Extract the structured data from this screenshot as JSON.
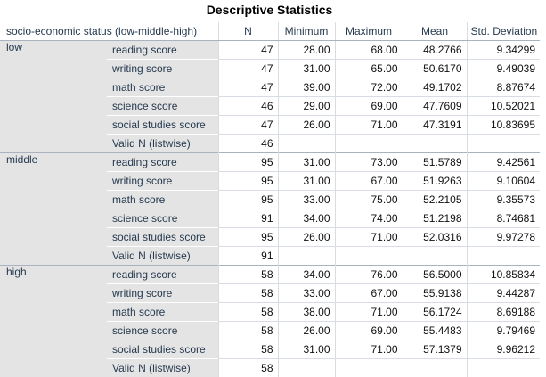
{
  "title": "Descriptive Statistics",
  "headers": {
    "group": "socio-economic status (low-middle-high)",
    "n": "N",
    "minimum": "Minimum",
    "maximum": "Maximum",
    "mean": "Mean",
    "std": "Std. Deviation"
  },
  "groups": [
    {
      "label": "low",
      "rows": [
        {
          "var": "reading score",
          "n": "47",
          "min": "28.00",
          "max": "68.00",
          "mean": "48.2766",
          "std": "9.34299"
        },
        {
          "var": "writing score",
          "n": "47",
          "min": "31.00",
          "max": "65.00",
          "mean": "50.6170",
          "std": "9.49039"
        },
        {
          "var": "math score",
          "n": "47",
          "min": "39.00",
          "max": "72.00",
          "mean": "49.1702",
          "std": "8.87674"
        },
        {
          "var": "science score",
          "n": "46",
          "min": "29.00",
          "max": "69.00",
          "mean": "47.7609",
          "std": "10.52021"
        },
        {
          "var": "social studies score",
          "n": "47",
          "min": "26.00",
          "max": "71.00",
          "mean": "47.3191",
          "std": "10.83695"
        },
        {
          "var": "Valid N (listwise)",
          "n": "46",
          "min": "",
          "max": "",
          "mean": "",
          "std": ""
        }
      ]
    },
    {
      "label": "middle",
      "rows": [
        {
          "var": "reading score",
          "n": "95",
          "min": "31.00",
          "max": "73.00",
          "mean": "51.5789",
          "std": "9.42561"
        },
        {
          "var": "writing score",
          "n": "95",
          "min": "31.00",
          "max": "67.00",
          "mean": "51.9263",
          "std": "9.10604"
        },
        {
          "var": "math score",
          "n": "95",
          "min": "33.00",
          "max": "75.00",
          "mean": "52.2105",
          "std": "9.35573"
        },
        {
          "var": "science score",
          "n": "91",
          "min": "34.00",
          "max": "74.00",
          "mean": "51.2198",
          "std": "8.74681"
        },
        {
          "var": "social studies score",
          "n": "95",
          "min": "26.00",
          "max": "71.00",
          "mean": "52.0316",
          "std": "9.97278"
        },
        {
          "var": "Valid N (listwise)",
          "n": "91",
          "min": "",
          "max": "",
          "mean": "",
          "std": ""
        }
      ]
    },
    {
      "label": "high",
      "rows": [
        {
          "var": "reading score",
          "n": "58",
          "min": "34.00",
          "max": "76.00",
          "mean": "56.5000",
          "std": "10.85834"
        },
        {
          "var": "writing score",
          "n": "58",
          "min": "33.00",
          "max": "67.00",
          "mean": "55.9138",
          "std": "9.44287"
        },
        {
          "var": "math score",
          "n": "58",
          "min": "38.00",
          "max": "71.00",
          "mean": "56.1724",
          "std": "8.69188"
        },
        {
          "var": "science score",
          "n": "58",
          "min": "26.00",
          "max": "69.00",
          "mean": "55.4483",
          "std": "9.79469"
        },
        {
          "var": "social studies score",
          "n": "58",
          "min": "31.00",
          "max": "71.00",
          "mean": "57.1379",
          "std": "9.96212"
        },
        {
          "var": "Valid N (listwise)",
          "n": "58",
          "min": "",
          "max": "",
          "mean": "",
          "std": ""
        }
      ]
    }
  ]
}
